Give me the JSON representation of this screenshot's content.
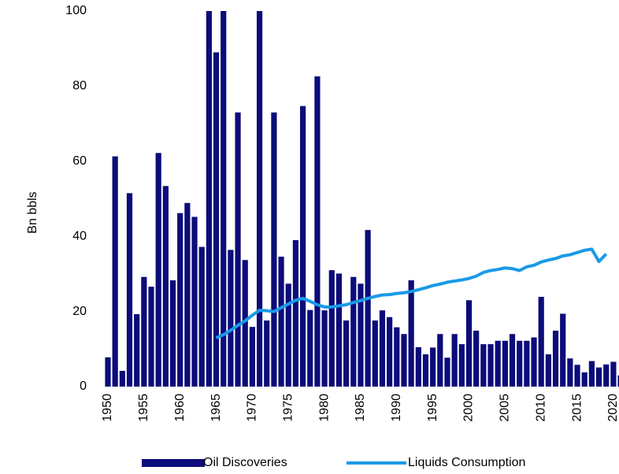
{
  "chart_data": {
    "type": "bar",
    "y_label": "Bn bbls",
    "categories": [
      "1950",
      null,
      null,
      null,
      null,
      "1955",
      null,
      null,
      null,
      null,
      "1960",
      null,
      null,
      null,
      null,
      "1965",
      null,
      null,
      null,
      null,
      "1970",
      null,
      null,
      null,
      null,
      "1975",
      null,
      null,
      null,
      null,
      "1980",
      null,
      null,
      null,
      null,
      "1985",
      null,
      null,
      null,
      null,
      "1990",
      null,
      null,
      null,
      null,
      "1995",
      null,
      null,
      null,
      null,
      "2000",
      null,
      null,
      null,
      null,
      "2005",
      null,
      null,
      null,
      null,
      "2010",
      null,
      null,
      null,
      null,
      "2015",
      null,
      null,
      null,
      null,
      "2020",
      null
    ],
    "series": [
      {
        "name": "Oil Discoveries",
        "type": "bar",
        "color": "#0c0c7a",
        "values": [
          7.8,
          61.3,
          4.2,
          51.5,
          19.3,
          29.2,
          26.6,
          62.2,
          53.4,
          28.3,
          46.2,
          48.9,
          45.2,
          37.2,
          100,
          89,
          100,
          36.4,
          73,
          33.7,
          15.9,
          100,
          17.6,
          73,
          34.6,
          27.4,
          39,
          74.7,
          20.4,
          82.6,
          20.3,
          31,
          30.1,
          17.6,
          29.2,
          27.4,
          41.7,
          17.6,
          20.3,
          18.5,
          15.8,
          14,
          28.3,
          10.5,
          8.6,
          10.4,
          14,
          7.7,
          14,
          11.3,
          23,
          14.9,
          11.3,
          11.3,
          12.2,
          12.2,
          14,
          12.2,
          12.2,
          13.1,
          23.9,
          8.6,
          14.9,
          19.4,
          7.5,
          5.8,
          3.8,
          6.8,
          5.1,
          5.9,
          6.6,
          3
        ]
      },
      {
        "name": "Liquids Consumption",
        "type": "line",
        "color": "#1a9ae8",
        "values": [
          null,
          null,
          null,
          null,
          null,
          null,
          null,
          null,
          null,
          null,
          null,
          null,
          null,
          null,
          null,
          13,
          13.8,
          15,
          16.3,
          17.5,
          19,
          20.3,
          20.2,
          20,
          21,
          22,
          23,
          23.5,
          22.7,
          21.8,
          21.2,
          21.2,
          21.5,
          21.8,
          22.4,
          22.9,
          23.5,
          24,
          24.4,
          24.5,
          24.8,
          25,
          25.3,
          25.8,
          26.3,
          26.9,
          27.3,
          27.8,
          28.1,
          28.4,
          28.8,
          29.4,
          30.4,
          30.9,
          31.2,
          31.6,
          31.4,
          30.9,
          31.9,
          32.3,
          33.2,
          33.7,
          34.1,
          34.8,
          35.1,
          35.7,
          36.3,
          36.6,
          33.3,
          35.3,
          null,
          null
        ]
      }
    ],
    "ylim": [
      0,
      100
    ],
    "yticks": [
      0,
      20,
      40,
      60,
      80,
      100
    ],
    "grid": false,
    "legend": "bottom"
  }
}
